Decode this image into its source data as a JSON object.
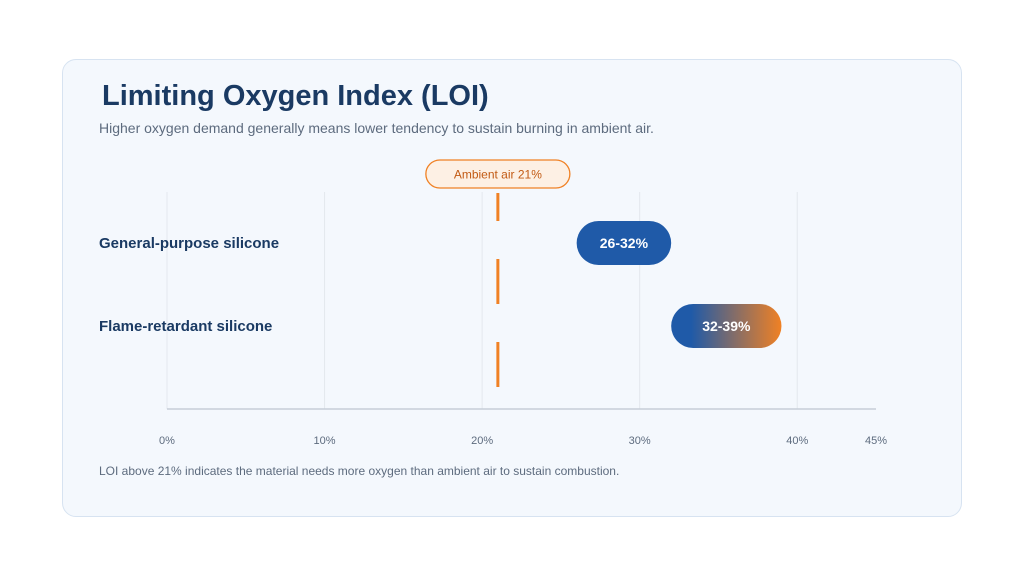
{
  "title": "Limiting Oxygen Index (LOI)",
  "subtitle": "Higher oxygen demand generally means lower tendency to sustain burning in ambient air.",
  "footnote": "LOI above 21% indicates the material needs more oxygen than ambient air to sustain combustion.",
  "colors": {
    "bar_start": "#1f5aa8",
    "bar_end": "#f08124",
    "reference": "#f08124",
    "grid": "#e3e8ee",
    "axis": "#c6ced8"
  },
  "chart_data": {
    "type": "bar",
    "orientation": "horizontal-range",
    "xlim": [
      0,
      45
    ],
    "xticks": [
      0,
      10,
      20,
      30,
      40,
      45
    ],
    "xtick_labels": [
      "0%",
      "10%",
      "20%",
      "30%",
      "40%",
      "45%"
    ],
    "grid": true,
    "categories": [
      "General-purpose silicone",
      "Flame-retardant silicone"
    ],
    "ranges": [
      {
        "low": 26,
        "high": 32,
        "label": "26-32%"
      },
      {
        "low": 32,
        "high": 39,
        "label": "32-39%"
      }
    ],
    "reference_line": {
      "value": 21,
      "label": "Ambient air 21%",
      "style": "dashed"
    }
  }
}
